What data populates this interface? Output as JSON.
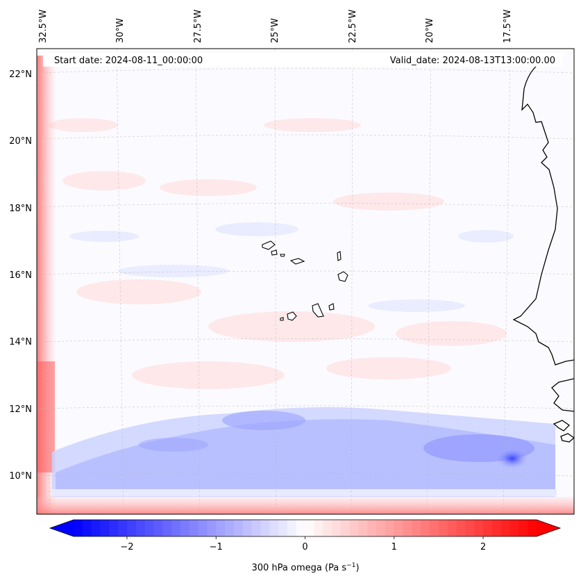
{
  "header": {
    "start_date": "Start date: 2024-08-11_00:00:00",
    "valid_date": "Valid_date: 2024-08-13T13:00:00.00"
  },
  "map": {
    "lon_labels": [
      "32.5°W",
      "30°W",
      "27.5°W",
      "25°W",
      "22.5°W",
      "20°W",
      "17.5°W"
    ],
    "lat_labels": [
      "22°N",
      "20°N",
      "18°N",
      "16°N",
      "14°N",
      "12°N",
      "10°N"
    ]
  },
  "colorbar": {
    "label_text": "300 hPa omega (Pa s",
    "label_sup": "−1",
    "label_close": ")",
    "ticks": [
      "−2",
      "−1",
      "0",
      "1",
      "2"
    ],
    "tick_values": [
      -2,
      -1,
      0,
      1,
      2
    ],
    "range": [
      -2.6,
      2.6
    ],
    "low_color": "#0000ff",
    "mid_color": "#ffffff",
    "high_color": "#ff0000"
  }
}
